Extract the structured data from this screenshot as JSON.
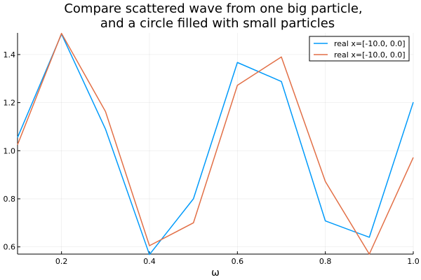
{
  "chart_data": {
    "type": "line",
    "title_line1": "Compare scattered wave from one big particle,",
    "title_line2": "and a circle filled with small particles",
    "xlabel": "ω",
    "ylabel": "",
    "xlim": [
      0.1,
      1.0
    ],
    "ylim": [
      0.57,
      1.49
    ],
    "grid": true,
    "legend_position": "top-right",
    "x_ticks": [
      0.2,
      0.4,
      0.6,
      0.8,
      1.0
    ],
    "x_tick_labels": [
      "0.2",
      "0.4",
      "0.6",
      "0.8",
      "1.0"
    ],
    "y_ticks": [
      0.6,
      0.8,
      1.0,
      1.2,
      1.4
    ],
    "y_tick_labels": [
      "0.6",
      "0.8",
      "1.0",
      "1.2",
      "1.4"
    ],
    "x": [
      0.1,
      0.2,
      0.3,
      0.4,
      0.5,
      0.6,
      0.7,
      0.8,
      0.9,
      1.0
    ],
    "series": [
      {
        "name": "real x=[-10.0, 0.0]",
        "color": "#009AFA",
        "values": [
          1.055,
          1.485,
          1.09,
          0.568,
          0.8,
          1.367,
          1.288,
          0.708,
          0.64,
          1.202
        ]
      },
      {
        "name": "real x=[-10.0, 0.0]",
        "color": "#E26F46",
        "values": [
          1.025,
          1.488,
          1.163,
          0.605,
          0.7,
          1.272,
          1.39,
          0.872,
          0.57,
          0.972
        ]
      }
    ]
  }
}
